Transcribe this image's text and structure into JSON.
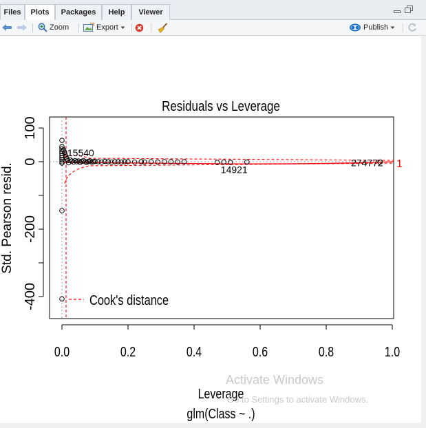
{
  "tabs": [
    {
      "label": "Files",
      "active": false
    },
    {
      "label": "Plots",
      "active": true
    },
    {
      "label": "Packages",
      "active": false
    },
    {
      "label": "Help",
      "active": false
    },
    {
      "label": "Viewer",
      "active": false
    }
  ],
  "toolbar": {
    "zoom_label": "Zoom",
    "export_label": "Export",
    "publish_label": "Publish"
  },
  "watermark": {
    "line1": "Activate Windows",
    "line2": "Go to Settings to activate Windows."
  },
  "colors": {
    "reference_line": "#ff0000",
    "points": "#000000",
    "accent_blue": "#1a73c9"
  },
  "chart_data": {
    "type": "scatter",
    "title": "Residuals vs Leverage",
    "xlabel": "Leverage",
    "subtitle": "glm(Class ~ .)",
    "ylabel": "Std. Pearson resid.",
    "xlim": [
      0,
      1.0
    ],
    "ylim": [
      -470,
      130
    ],
    "xticks": [
      "0.0",
      "0.2",
      "0.4",
      "0.6",
      "0.8",
      "1.0"
    ],
    "yticks": [
      "-400",
      "-200",
      "0",
      "100"
    ],
    "legend": {
      "label": "Cook's distance",
      "placement": "bottom-left"
    },
    "point_labels": [
      {
        "text": "15540",
        "x": 0.004,
        "y": 25
      },
      {
        "text": "14921",
        "x": 0.51,
        "y": -5
      },
      {
        "text": "274772",
        "x": 0.96,
        "y": -5
      }
    ],
    "contour_label": "1",
    "points": [
      {
        "x": 0.0,
        "y": 63
      },
      {
        "x": 0.0,
        "y": 45
      },
      {
        "x": 0.0,
        "y": 38
      },
      {
        "x": 0.0,
        "y": 30
      },
      {
        "x": 0.0,
        "y": 25
      },
      {
        "x": 0.0,
        "y": 18
      },
      {
        "x": 0.0,
        "y": 12
      },
      {
        "x": 0.0,
        "y": 6
      },
      {
        "x": 0.0,
        "y": 0
      },
      {
        "x": 0.0,
        "y": -4
      },
      {
        "x": 0.0,
        "y": -145
      },
      {
        "x": 0.0,
        "y": -407
      },
      {
        "x": 0.005,
        "y": 35
      },
      {
        "x": 0.008,
        "y": 28
      },
      {
        "x": 0.01,
        "y": 20
      },
      {
        "x": 0.012,
        "y": 14
      },
      {
        "x": 0.015,
        "y": 8
      },
      {
        "x": 0.018,
        "y": 3
      },
      {
        "x": 0.02,
        "y": -3
      },
      {
        "x": 0.025,
        "y": 5
      },
      {
        "x": 0.03,
        "y": 2
      },
      {
        "x": 0.035,
        "y": -1
      },
      {
        "x": 0.04,
        "y": 3
      },
      {
        "x": 0.045,
        "y": 0
      },
      {
        "x": 0.05,
        "y": 2
      },
      {
        "x": 0.055,
        "y": -2
      },
      {
        "x": 0.06,
        "y": 1
      },
      {
        "x": 0.065,
        "y": 3
      },
      {
        "x": 0.07,
        "y": 0
      },
      {
        "x": 0.075,
        "y": -2
      },
      {
        "x": 0.08,
        "y": 1
      },
      {
        "x": 0.085,
        "y": 2
      },
      {
        "x": 0.09,
        "y": -1
      },
      {
        "x": 0.095,
        "y": 0
      },
      {
        "x": 0.1,
        "y": 1
      },
      {
        "x": 0.11,
        "y": 0
      },
      {
        "x": 0.12,
        "y": -1
      },
      {
        "x": 0.13,
        "y": 1
      },
      {
        "x": 0.14,
        "y": 0
      },
      {
        "x": 0.15,
        "y": -1
      },
      {
        "x": 0.16,
        "y": 0
      },
      {
        "x": 0.17,
        "y": 0
      },
      {
        "x": 0.18,
        "y": -1
      },
      {
        "x": 0.19,
        "y": 0
      },
      {
        "x": 0.2,
        "y": 0
      },
      {
        "x": 0.22,
        "y": -1
      },
      {
        "x": 0.24,
        "y": 0
      },
      {
        "x": 0.25,
        "y": -1
      },
      {
        "x": 0.27,
        "y": 0
      },
      {
        "x": 0.29,
        "y": -1
      },
      {
        "x": 0.31,
        "y": 0
      },
      {
        "x": 0.33,
        "y": 0
      },
      {
        "x": 0.35,
        "y": -1
      },
      {
        "x": 0.37,
        "y": 0
      },
      {
        "x": 0.47,
        "y": -2
      },
      {
        "x": 0.49,
        "y": -1
      },
      {
        "x": 0.51,
        "y": -2
      },
      {
        "x": 0.56,
        "y": -1
      },
      {
        "x": 0.963,
        "y": -1
      }
    ]
  }
}
